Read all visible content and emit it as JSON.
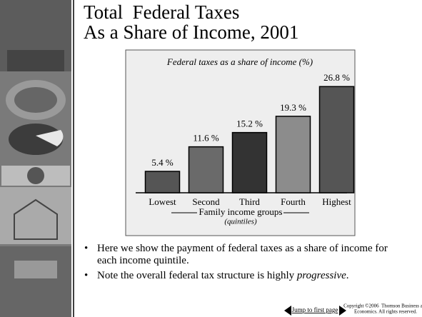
{
  "slide": {
    "title_lines": [
      "Total  Federal Taxes",
      "As a Share of Income, 2001"
    ],
    "bullets": [
      [
        "Here we show the payment of federal taxes as a share of income for each income quintile."
      ],
      [
        "Note the overall federal tax structure is highly ",
        "progressive",
        "."
      ]
    ],
    "nav_link": "Jump to first page",
    "copyright_lines": [
      "Copyright ©2006  Thomson Business and",
      "Economics. All rights reserved."
    ]
  },
  "chart_data": {
    "type": "bar",
    "title": "Federal taxes as a share of income (%)",
    "categories": [
      "Lowest",
      "Second",
      "Third",
      "Fourth",
      "Highest"
    ],
    "values": [
      5.4,
      11.6,
      15.2,
      19.3,
      26.8
    ],
    "value_labels": [
      "5.4 %",
      "11.6 %",
      "15.2 %",
      "19.3 %",
      "26.8 %"
    ],
    "colors": [
      "#555555",
      "#6a6a6a",
      "#333333",
      "#8c8c8c",
      "#555555"
    ],
    "xlabel": "Family income groups",
    "xlabel_note": "(quintiles)"
  }
}
